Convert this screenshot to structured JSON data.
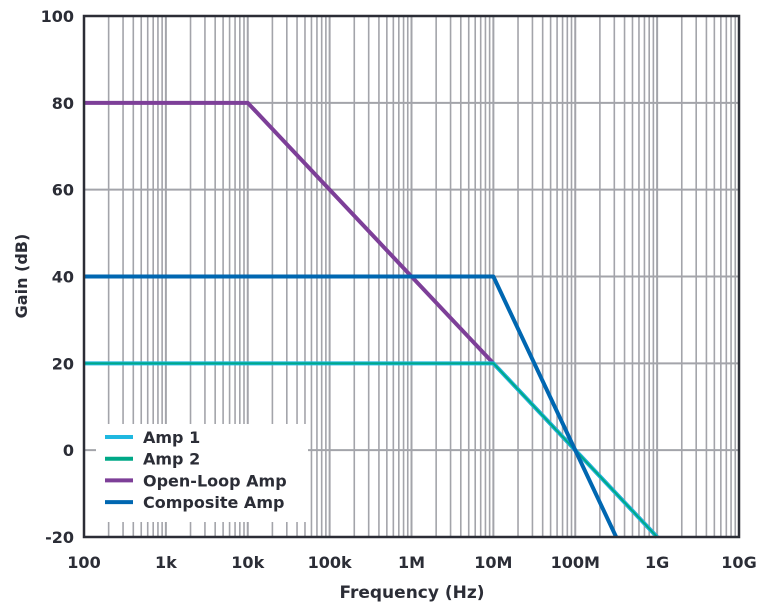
{
  "chart_data": {
    "type": "line",
    "xlabel": "Frequency (Hz)",
    "ylabel": "Gain (dB)",
    "xscale": "log",
    "xlim": [
      100,
      10000000000
    ],
    "ylim": [
      -20,
      100
    ],
    "grid": true,
    "legend_placement": "bottom-left",
    "x_ticks": [
      {
        "value": 100,
        "label": "100"
      },
      {
        "value": 1000,
        "label": "1k"
      },
      {
        "value": 10000,
        "label": "10k"
      },
      {
        "value": 100000,
        "label": "100k"
      },
      {
        "value": 1000000,
        "label": "1M"
      },
      {
        "value": 10000000,
        "label": "10M"
      },
      {
        "value": 100000000,
        "label": "100M"
      },
      {
        "value": 1000000000,
        "label": "1G"
      },
      {
        "value": 10000000000,
        "label": "10G"
      }
    ],
    "y_ticks": [
      100,
      80,
      60,
      40,
      20,
      0,
      -20
    ],
    "series": [
      {
        "name": "Amp 1",
        "color": "#1fb8e0",
        "points": [
          [
            100,
            20
          ],
          [
            10000000,
            20
          ],
          [
            1000000000,
            -20
          ]
        ]
      },
      {
        "name": "Amp 2",
        "color": "#00a887",
        "points": [
          [
            100,
            20
          ],
          [
            10000000,
            20
          ],
          [
            1000000000,
            -20
          ]
        ]
      },
      {
        "name": "Open-Loop Amp",
        "color": "#7d3f98",
        "points": [
          [
            100,
            80
          ],
          [
            10000,
            80
          ],
          [
            1000000000,
            -20
          ]
        ]
      },
      {
        "name": "Composite Amp",
        "color": "#0067b1",
        "points": [
          [
            100,
            40
          ],
          [
            10000000,
            40
          ],
          [
            316000000,
            -20
          ]
        ]
      }
    ]
  }
}
